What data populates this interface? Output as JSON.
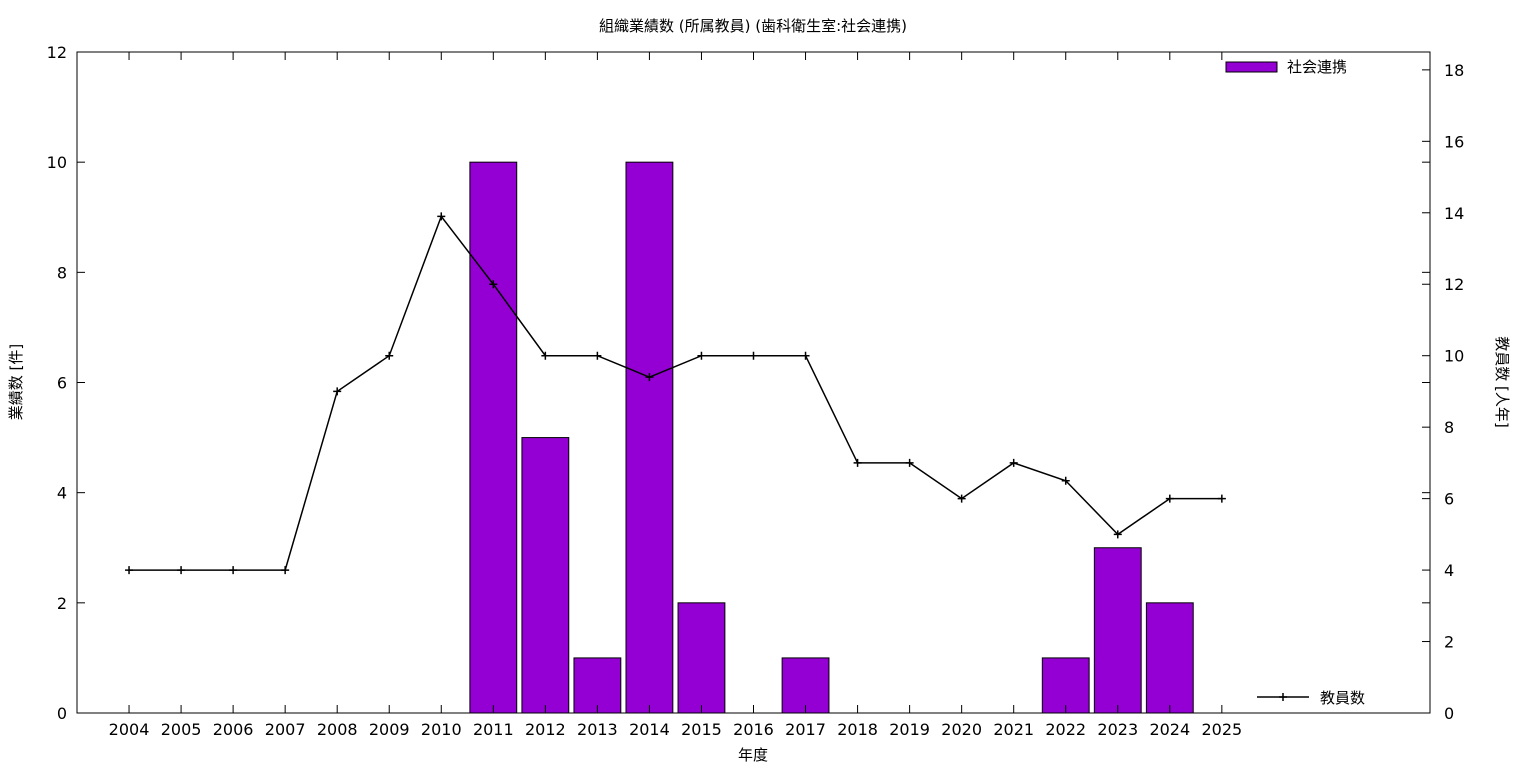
{
  "chart_data": {
    "type": "bar+line",
    "title": "組織業績数 (所属教員) (歯科衛生室:社会連携)",
    "xlabel": "年度",
    "ylabel_left": "業績数 [件]",
    "ylabel_right": "教員数 [人年]",
    "categories": [
      "2004",
      "2005",
      "2006",
      "2007",
      "2008",
      "2009",
      "2010",
      "2011",
      "2012",
      "2013",
      "2014",
      "2015",
      "2016",
      "2017",
      "2018",
      "2019",
      "2020",
      "2021",
      "2022",
      "2023",
      "2024",
      "2025"
    ],
    "xlim_slots": 26,
    "y_left": {
      "min": 0,
      "max": 12,
      "ticks": [
        0,
        2,
        4,
        6,
        8,
        10,
        12
      ]
    },
    "y_right": {
      "min": 0,
      "max": 18.5,
      "ticks": [
        0,
        2,
        4,
        6,
        8,
        10,
        12,
        14,
        16,
        18
      ]
    },
    "series": [
      {
        "name": "社会連携",
        "kind": "bar",
        "axis": "left",
        "color": "#9400d3",
        "values": [
          0,
          0,
          0,
          0,
          0,
          0,
          0,
          10,
          5,
          1,
          10,
          2,
          0,
          1,
          0,
          0,
          0,
          0,
          1,
          3,
          2,
          0
        ]
      },
      {
        "name": "教員数",
        "kind": "line",
        "axis": "right",
        "color": "#000000",
        "marker": "plus",
        "values": [
          4,
          4,
          4,
          4,
          9,
          10,
          13.9,
          12,
          10,
          10,
          9.4,
          10,
          10,
          10,
          7,
          7,
          6,
          7,
          6.5,
          5,
          6,
          6
        ]
      }
    ],
    "legend": [
      "top-right (bar)",
      "bottom-right (line)"
    ],
    "grid": false
  }
}
